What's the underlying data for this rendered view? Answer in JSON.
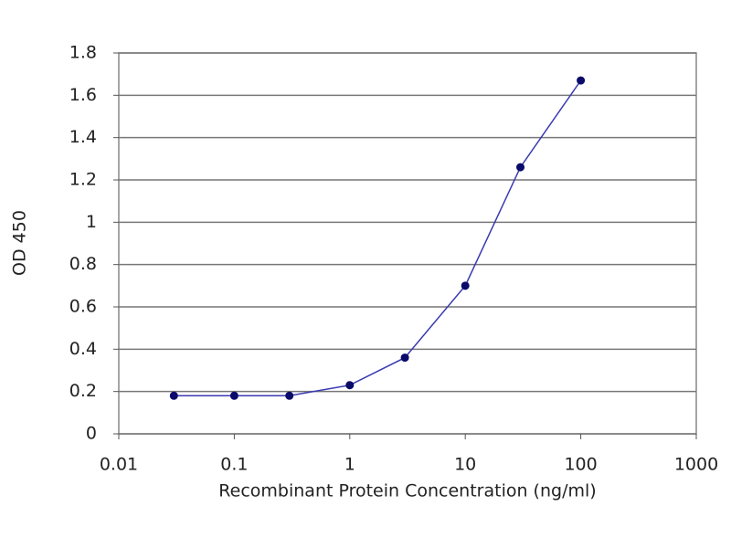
{
  "chart_data": {
    "type": "line",
    "xlabel": "Recombinant Protein Concentration (ng/ml)",
    "ylabel": "OD 450",
    "x": [
      0.03,
      0.1,
      0.3,
      1,
      3,
      10,
      30,
      100
    ],
    "series": [
      {
        "color": "#3a3ab0",
        "marker_color": "#0a0a6a",
        "values": [
          0.18,
          0.18,
          0.18,
          0.23,
          0.36,
          0.7,
          1.26,
          1.67
        ]
      }
    ],
    "xscale": "log",
    "xlim": [
      0.01,
      1000
    ],
    "xticks": [
      0.01,
      0.1,
      1,
      10,
      100,
      1000
    ],
    "ylim": [
      0,
      1.8
    ],
    "yticks": [
      0,
      0.2,
      0.4,
      0.6,
      0.8,
      1,
      1.2,
      1.4,
      1.6,
      1.8
    ],
    "grid": true
  }
}
